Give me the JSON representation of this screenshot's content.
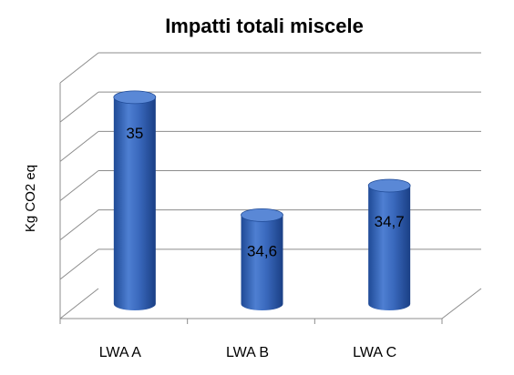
{
  "chart_data": {
    "type": "bar",
    "title": "Impatti totali miscele",
    "xlabel": "",
    "ylabel": "Kg CO2 eq",
    "categories": [
      "LWA A",
      "LWA B",
      "LWA C"
    ],
    "values": [
      35,
      34.6,
      34.7
    ],
    "data_labels": [
      "35",
      "34,6",
      "34,7"
    ],
    "ylim": [
      34.3,
      35.1
    ],
    "grid": true,
    "style": "3d-cylinder",
    "colors": {
      "bar": "#3F6FC4",
      "bar_dark": "#1F4A96",
      "bar_top": "#5A88D6",
      "grid": "#8c8c8c"
    }
  }
}
